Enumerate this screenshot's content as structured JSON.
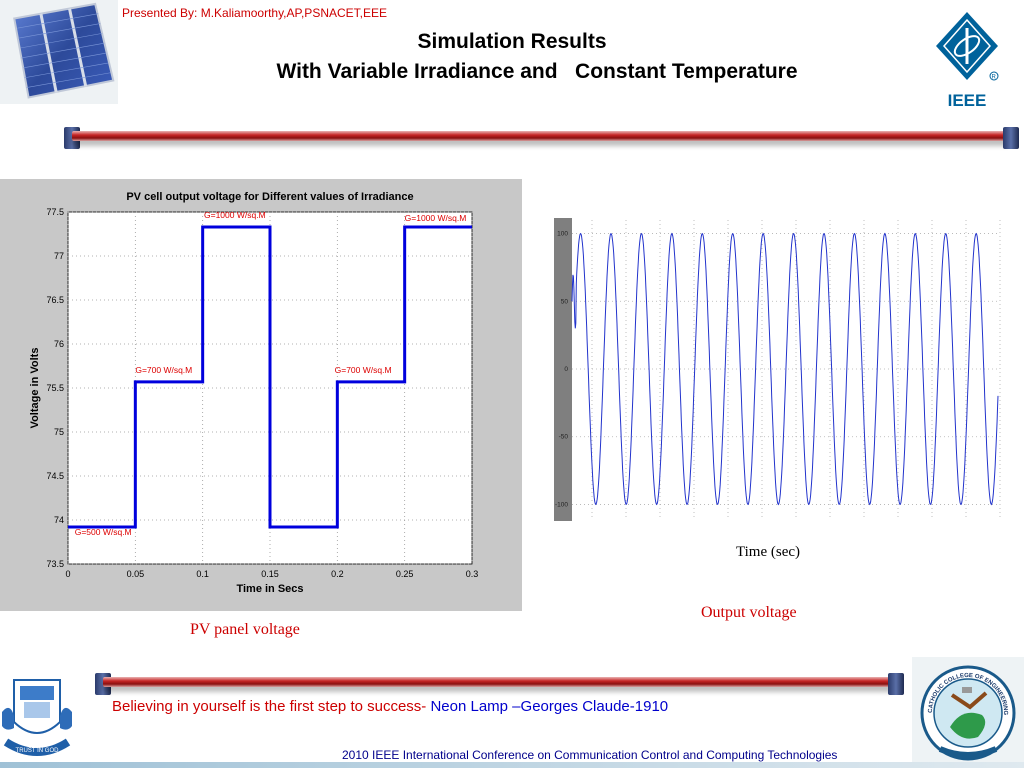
{
  "header": {
    "presenter": "Presented By: M.Kaliamoorthy,AP,PSNACET,EEE",
    "title_line1": "Simulation Results",
    "title_line2": "With Variable Irradiance and   Constant Temperature",
    "ieee_logo_text": "IEEE"
  },
  "left_chart": {
    "caption": "PV panel voltage",
    "chart_data": {
      "type": "line",
      "title": "PV cell output voltage for Different values of Irradiance",
      "xlabel": "Time in Secs",
      "ylabel": "Voltage in Volts",
      "xlim": [
        0,
        0.3
      ],
      "ylim": [
        73.5,
        77.5
      ],
      "xticks": [
        "0",
        "0.05",
        "0.1",
        "0.15",
        "0.2",
        "0.25",
        "0.3"
      ],
      "yticks": [
        "77.5",
        "77",
        "76.5",
        "76",
        "75.5",
        "75",
        "74.5",
        "74",
        "73.5"
      ],
      "grid": "dotted",
      "series": [
        {
          "color": "#0000dd",
          "x": [
            0,
            0.05,
            0.05,
            0.1,
            0.1,
            0.15,
            0.15,
            0.2,
            0.2,
            0.25,
            0.25,
            0.3
          ],
          "y": [
            73.92,
            73.92,
            75.57,
            75.57,
            77.33,
            77.33,
            73.92,
            73.92,
            75.57,
            75.57,
            77.33,
            77.33
          ]
        }
      ],
      "annotations": [
        {
          "text": "G=500 W/sq.M",
          "x": 0.005,
          "y": 73.83
        },
        {
          "text": "G=700 W/sq.M",
          "x": 0.05,
          "y": 75.67
        },
        {
          "text": "G=1000 W/sq.M",
          "x": 0.101,
          "y": 77.43
        },
        {
          "text": "G=700 W/sq.M",
          "x": 0.198,
          "y": 75.67
        },
        {
          "text": "G=1000 W/sq.M",
          "x": 0.25,
          "y": 77.4
        }
      ]
    }
  },
  "right_chart": {
    "caption": "Output voltage",
    "xlabel": "Time (sec)",
    "chart_data": {
      "type": "line",
      "title": "",
      "xlabel": "Time (sec)",
      "ylabel": "",
      "ylim": [
        -110,
        110
      ],
      "yticks": [
        "100",
        "50",
        "0",
        "-50",
        "-100"
      ],
      "grid": "dotted",
      "cycles": 14,
      "amplitude": 100,
      "series": [
        {
          "color": "#2233cc"
        }
      ]
    }
  },
  "footer": {
    "quote_red": "Believing in yourself is the first step to success- ",
    "quote_blue": "Neon Lamp –Georges Claude-1910",
    "conference": "2010 IEEE International Conference on Communication Control and Computing Technologies",
    "psna_logo_text": "TRUST IN GOD",
    "college_logo_text": "CATHOLIC COLLEGE OF ENGINEERING"
  },
  "colors": {
    "accent_red": "#cc0000",
    "series_blue": "#0000dd",
    "wave_blue": "#2233cc",
    "ieee_blue": "#00629b"
  }
}
